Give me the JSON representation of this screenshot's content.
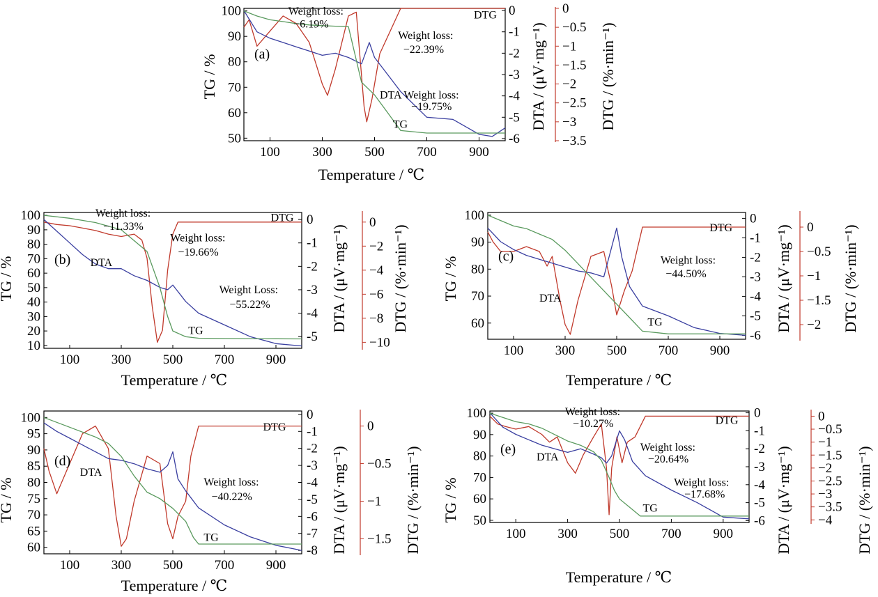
{
  "colors": {
    "tg": "#5a9a5e",
    "dta": "#3a3fa0",
    "dtg": "#c0392b",
    "frame": "#000000",
    "annot_line": "#888888"
  },
  "xlabel": "Temperature / ℃",
  "ylabel_tg": "TG / %",
  "ylabel_dta": "DTA / (μV·mg⁻¹)",
  "ylabel_dtg": "DTG / (%·min⁻¹)",
  "chart_data": [
    {
      "id": "a",
      "label": "(a)",
      "type": "line",
      "xlim": [
        0,
        1000
      ],
      "xticks": [
        100,
        300,
        500,
        700,
        900
      ],
      "tg": {
        "ylim": [
          49,
          101
        ],
        "ticks": [
          50,
          60,
          70,
          80,
          90,
          100
        ],
        "x": [
          0,
          50,
          100,
          150,
          200,
          250,
          300,
          350,
          400,
          450,
          500,
          550,
          600,
          700,
          800,
          900,
          1000
        ],
        "y": [
          100,
          98,
          96.5,
          95.8,
          95,
          94.5,
          94.2,
          94,
          93.8,
          72,
          67,
          60,
          53,
          52,
          52,
          52,
          52
        ]
      },
      "dta": {
        "ylim": [
          -6.1,
          0.1
        ],
        "ticks": [
          0,
          -1,
          -2,
          -3,
          -4,
          -5,
          -6
        ],
        "x": [
          0,
          50,
          100,
          150,
          200,
          250,
          300,
          350,
          400,
          450,
          480,
          500,
          550,
          600,
          700,
          800,
          900,
          950,
          1000
        ],
        "y": [
          0,
          -1,
          -1.3,
          -1.5,
          -1.7,
          -1.9,
          -2.1,
          -2.0,
          -2.2,
          -2.5,
          -1.5,
          -2.2,
          -3.0,
          -3.8,
          -5.0,
          -5.1,
          -5.8,
          -5.9,
          -5.5
        ]
      },
      "dtg": {
        "ylim": [
          -3.5,
          0
        ],
        "ticks": [
          0,
          -0.5,
          -1.0,
          -1.5,
          -2.0,
          -2.5,
          -3.0,
          -3.5
        ],
        "x": [
          0,
          20,
          50,
          100,
          150,
          200,
          250,
          300,
          320,
          350,
          400,
          430,
          460,
          470,
          490,
          520,
          560,
          600,
          700,
          800,
          900,
          1000
        ],
        "y": [
          -0.5,
          -0.3,
          -1.0,
          -0.6,
          -0.2,
          -0.4,
          -0.9,
          -2.0,
          -2.3,
          -1.6,
          -0.2,
          -0.1,
          -2.6,
          -3.0,
          -2.4,
          -1.2,
          -0.6,
          0,
          0,
          0,
          0,
          0
        ]
      },
      "labels": [
        {
          "text": "Weight loss:",
          "x": 170,
          "y": 98.5,
          "axis": "tg"
        },
        {
          "text": "−6.19%",
          "x": 190,
          "y": 93.5,
          "axis": "tg"
        },
        {
          "text": "Weight loss:",
          "x": 590,
          "y": 89,
          "axis": "tg"
        },
        {
          "text": "−22.39%",
          "x": 610,
          "y": 83.5,
          "axis": "tg"
        },
        {
          "text": "DTA Weight loss:",
          "x": 520,
          "y": 65.5,
          "axis": "tg"
        },
        {
          "text": "−19.75%",
          "x": 640,
          "y": 61,
          "axis": "tg"
        },
        {
          "text": "TG",
          "x": 570,
          "y": 54,
          "axis": "tg"
        },
        {
          "text": "DTG",
          "x": 880,
          "y": 97,
          "axis": "tg"
        }
      ]
    },
    {
      "id": "b",
      "label": "(b)",
      "type": "line",
      "xlim": [
        0,
        1000
      ],
      "xticks": [
        100,
        300,
        500,
        700,
        900
      ],
      "tg": {
        "ylim": [
          8,
          102
        ],
        "ticks": [
          10,
          20,
          30,
          40,
          50,
          60,
          70,
          80,
          90,
          100
        ],
        "x": [
          0,
          100,
          200,
          300,
          400,
          420,
          450,
          480,
          500,
          550,
          600,
          700,
          800,
          900,
          1000
        ],
        "y": [
          100,
          98,
          95,
          90,
          75,
          65,
          50,
          30,
          20,
          16,
          15,
          14.8,
          14.7,
          14.6,
          14.5
        ]
      },
      "dta": {
        "ylim": [
          -5.5,
          0.3
        ],
        "ticks": [
          0,
          -1,
          -2,
          -3,
          -4,
          -5
        ],
        "x": [
          0,
          50,
          100,
          150,
          200,
          250,
          300,
          350,
          400,
          450,
          480,
          500,
          550,
          600,
          700,
          800,
          900,
          1000
        ],
        "y": [
          0,
          -0.5,
          -1.0,
          -1.5,
          -1.9,
          -2.1,
          -2.1,
          -2.4,
          -2.6,
          -2.9,
          -3.0,
          -2.8,
          -3.5,
          -4.0,
          -4.5,
          -5.0,
          -5.3,
          -5.4
        ]
      },
      "dtg": {
        "ylim": [
          -10.5,
          0.8
        ],
        "ticks": [
          0,
          -2,
          -4,
          -6,
          -8,
          -10
        ],
        "x": [
          0,
          50,
          100,
          150,
          200,
          250,
          300,
          350,
          380,
          400,
          420,
          440,
          460,
          480,
          500,
          520,
          600,
          700,
          800,
          900,
          1000
        ],
        "y": [
          0,
          -0.2,
          -0.3,
          -0.5,
          -0.7,
          -1.0,
          -1.2,
          -1.0,
          -1.5,
          -3,
          -7,
          -10,
          -9,
          -4,
          -1,
          0,
          0,
          0,
          0,
          0,
          0
        ]
      },
      "labels": [
        {
          "text": "Weight loss:",
          "x": 200,
          "y": 99,
          "axis": "tg"
        },
        {
          "text": "−11.33%",
          "x": 230,
          "y": 90,
          "axis": "tg"
        },
        {
          "text": "Weight loss:",
          "x": 490,
          "y": 82,
          "axis": "tg"
        },
        {
          "text": "−19.66%",
          "x": 520,
          "y": 72,
          "axis": "tg"
        },
        {
          "text": "Weight Loss:",
          "x": 680,
          "y": 46,
          "axis": "tg"
        },
        {
          "text": "−55.22%",
          "x": 720,
          "y": 36,
          "axis": "tg"
        },
        {
          "text": "DTA",
          "x": 180,
          "y": 65,
          "axis": "tg"
        },
        {
          "text": "TG",
          "x": 560,
          "y": 18,
          "axis": "tg"
        },
        {
          "text": "DTG",
          "x": 880,
          "y": 96,
          "axis": "tg"
        }
      ]
    },
    {
      "id": "c",
      "label": "(c)",
      "type": "line",
      "xlim": [
        0,
        1000
      ],
      "xticks": [
        100,
        300,
        500,
        700,
        900
      ],
      "tg": {
        "ylim": [
          54,
          101
        ],
        "ticks": [
          60,
          70,
          80,
          90,
          100
        ],
        "x": [
          0,
          50,
          100,
          150,
          200,
          250,
          300,
          350,
          400,
          450,
          500,
          550,
          600,
          700,
          800,
          900,
          1000
        ],
        "y": [
          100,
          98,
          96,
          95,
          93,
          91,
          87,
          82,
          77,
          72,
          67,
          62,
          57,
          56,
          56,
          56,
          56
        ]
      },
      "dta": {
        "ylim": [
          -6.2,
          0.3
        ],
        "ticks": [
          0,
          -1,
          -2,
          -3,
          -4,
          -5,
          -6
        ],
        "x": [
          0,
          50,
          100,
          150,
          200,
          250,
          300,
          350,
          400,
          450,
          480,
          500,
          520,
          550,
          600,
          700,
          800,
          900,
          1000
        ],
        "y": [
          -0.5,
          -1.2,
          -1.6,
          -1.9,
          -2.1,
          -2.3,
          -2.5,
          -2.7,
          -2.8,
          -3.0,
          -1.5,
          -0.5,
          -2.0,
          -3.5,
          -4.5,
          -5.0,
          -5.6,
          -5.9,
          -6.0
        ]
      },
      "dtg": {
        "ylim": [
          -2.3,
          0.3
        ],
        "ticks": [
          0,
          -0.5,
          -1.0,
          -1.5,
          -2.0
        ],
        "x": [
          0,
          20,
          50,
          100,
          150,
          200,
          230,
          250,
          280,
          300,
          320,
          350,
          400,
          450,
          480,
          500,
          530,
          560,
          600,
          700,
          800,
          900,
          1000
        ],
        "y": [
          -0.1,
          -0.3,
          -0.5,
          -0.5,
          -0.4,
          -0.5,
          -0.8,
          -0.6,
          -1.5,
          -2.0,
          -2.2,
          -1.5,
          -0.6,
          -0.5,
          -1.2,
          -1.8,
          -1.3,
          -0.9,
          0,
          0,
          0,
          0,
          0
        ]
      },
      "labels": [
        {
          "text": "Weight loss:",
          "x": 670,
          "y": 82,
          "axis": "tg"
        },
        {
          "text": "−44.50%",
          "x": 690,
          "y": 77,
          "axis": "tg"
        },
        {
          "text": "DTA",
          "x": 200,
          "y": 68,
          "axis": "tg"
        },
        {
          "text": "TG",
          "x": 620,
          "y": 59,
          "axis": "tg"
        },
        {
          "text": "DTG",
          "x": 860,
          "y": 94,
          "axis": "tg"
        }
      ]
    },
    {
      "id": "d",
      "label": "(d)",
      "type": "line",
      "xlim": [
        0,
        1000
      ],
      "xticks": [
        100,
        300,
        500,
        700,
        900
      ],
      "tg": {
        "ylim": [
          58,
          102
        ],
        "ticks": [
          60,
          65,
          70,
          75,
          80,
          85,
          90,
          95,
          100
        ],
        "x": [
          0,
          100,
          200,
          250,
          300,
          350,
          400,
          450,
          500,
          550,
          580,
          600,
          700,
          800,
          900,
          1000
        ],
        "y": [
          100,
          97,
          94,
          92,
          88,
          82,
          77,
          75,
          72,
          68,
          63,
          61,
          61,
          61,
          61,
          61
        ]
      },
      "dta": {
        "ylim": [
          -8.2,
          0.2
        ],
        "ticks": [
          0,
          -1,
          -2,
          -3,
          -4,
          -5,
          -6,
          -7,
          -8
        ],
        "x": [
          0,
          50,
          100,
          150,
          200,
          250,
          300,
          350,
          400,
          450,
          480,
          500,
          520,
          550,
          600,
          700,
          800,
          900,
          1000
        ],
        "y": [
          -0.5,
          -1.0,
          -1.4,
          -1.8,
          -2.2,
          -2.6,
          -2.7,
          -2.9,
          -3.2,
          -3.4,
          -3.0,
          -2.2,
          -3.8,
          -4.5,
          -5.5,
          -6.5,
          -7.2,
          -7.7,
          -8.0
        ]
      },
      "dtg": {
        "ylim": [
          -1.7,
          0.2
        ],
        "ticks": [
          0,
          -0.5,
          -1.0,
          -1.5
        ],
        "x": [
          0,
          20,
          50,
          100,
          150,
          200,
          250,
          280,
          300,
          320,
          350,
          400,
          450,
          480,
          500,
          520,
          550,
          570,
          600,
          700,
          800,
          900,
          1000
        ],
        "y": [
          -0.3,
          -0.6,
          -0.9,
          -0.5,
          -0.1,
          0,
          -0.3,
          -1.2,
          -1.6,
          -1.5,
          -1.0,
          -0.4,
          -0.5,
          -1.3,
          -1.5,
          -1.2,
          -1.0,
          -0.4,
          0,
          0,
          0,
          0,
          0
        ]
      },
      "labels": [
        {
          "text": "Weight loss:",
          "x": 620,
          "y": 79,
          "axis": "tg"
        },
        {
          "text": "−40.22%",
          "x": 650,
          "y": 74.5,
          "axis": "tg"
        },
        {
          "text": "DTA",
          "x": 140,
          "y": 82,
          "axis": "tg"
        },
        {
          "text": "TG",
          "x": 620,
          "y": 62,
          "axis": "tg"
        },
        {
          "text": "DTG",
          "x": 850,
          "y": 96,
          "axis": "tg"
        }
      ]
    },
    {
      "id": "e",
      "label": "(e)",
      "type": "line",
      "xlim": [
        0,
        1000
      ],
      "xticks": [
        100,
        300,
        500,
        700,
        900
      ],
      "tg": {
        "ylim": [
          49,
          101
        ],
        "ticks": [
          50,
          60,
          70,
          80,
          90,
          100
        ],
        "x": [
          0,
          50,
          100,
          150,
          200,
          250,
          300,
          350,
          400,
          430,
          460,
          480,
          500,
          550,
          580,
          600,
          700,
          800,
          900,
          1000
        ],
        "y": [
          100,
          98,
          96,
          95,
          93,
          90,
          87,
          85,
          82,
          78,
          70,
          64,
          60,
          55,
          52,
          52,
          52,
          52,
          52,
          52
        ]
      },
      "dta": {
        "ylim": [
          -6.1,
          0.1
        ],
        "ticks": [
          0,
          -1,
          -2,
          -3,
          -4,
          -5,
          -6
        ],
        "x": [
          0,
          50,
          100,
          150,
          200,
          250,
          300,
          350,
          400,
          430,
          450,
          470,
          500,
          520,
          550,
          600,
          700,
          800,
          900,
          1000
        ],
        "y": [
          0,
          -0.8,
          -1.2,
          -1.5,
          -1.8,
          -2.0,
          -2.2,
          -2.0,
          -2.3,
          -2.5,
          -2.8,
          -2.4,
          -1.0,
          -1.5,
          -2.7,
          -3.5,
          -4.3,
          -5.0,
          -5.8,
          -5.9
        ]
      },
      "dtg": {
        "ylim": [
          -4.1,
          0.2
        ],
        "ticks": [
          0,
          -0.5,
          -1.0,
          -1.5,
          -2.0,
          -2.5,
          -3.0,
          -3.5,
          -4.0
        ],
        "x": [
          0,
          30,
          60,
          100,
          150,
          200,
          230,
          260,
          300,
          330,
          360,
          400,
          430,
          450,
          460,
          470,
          490,
          510,
          530,
          560,
          600,
          700,
          800,
          900,
          1000
        ],
        "y": [
          0,
          -0.3,
          -0.4,
          -0.5,
          -0.4,
          -0.7,
          -1.0,
          -0.8,
          -1.8,
          -2.2,
          -1.5,
          -0.8,
          -0.3,
          -2.0,
          -3.8,
          -2.0,
          -0.8,
          -1.8,
          -1.0,
          -0.8,
          0,
          0,
          0,
          0,
          0
        ]
      },
      "labels": [
        {
          "text": "Weight loss:",
          "x": 290,
          "y": 99,
          "axis": "tg"
        },
        {
          "text": "−10.27%",
          "x": 320,
          "y": 93.5,
          "axis": "tg"
        },
        {
          "text": "Weight loss:",
          "x": 580,
          "y": 82.5,
          "axis": "tg"
        },
        {
          "text": "−20.64%",
          "x": 610,
          "y": 77,
          "axis": "tg"
        },
        {
          "text": "Weight loss:",
          "x": 710,
          "y": 66,
          "axis": "tg"
        },
        {
          "text": "−17.68%",
          "x": 750,
          "y": 60.5,
          "axis": "tg"
        },
        {
          "text": "DTA",
          "x": 180,
          "y": 78,
          "axis": "tg"
        },
        {
          "text": "TG",
          "x": 590,
          "y": 54,
          "axis": "tg"
        },
        {
          "text": "DTG",
          "x": 870,
          "y": 95,
          "axis": "tg"
        }
      ]
    }
  ]
}
